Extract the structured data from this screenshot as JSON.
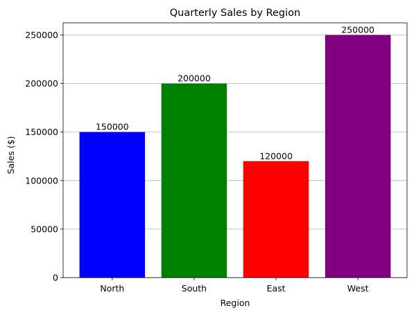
{
  "chart_data": {
    "type": "bar",
    "title": "Quarterly Sales by Region",
    "xlabel": "Region",
    "ylabel": "Sales ($)",
    "categories": [
      "North",
      "South",
      "East",
      "West"
    ],
    "values": [
      150000,
      200000,
      120000,
      250000
    ],
    "data_labels": [
      "150000",
      "200000",
      "120000",
      "250000"
    ],
    "colors": [
      "#0000ff",
      "#008000",
      "#ff0000",
      "#800080"
    ],
    "ylim": [
      0,
      262500
    ],
    "yticks": [
      0,
      50000,
      100000,
      150000,
      200000,
      250000
    ],
    "ytick_labels": [
      "0",
      "50000",
      "100000",
      "150000",
      "200000",
      "250000"
    ],
    "grid": "y-axis",
    "legend": "none"
  }
}
